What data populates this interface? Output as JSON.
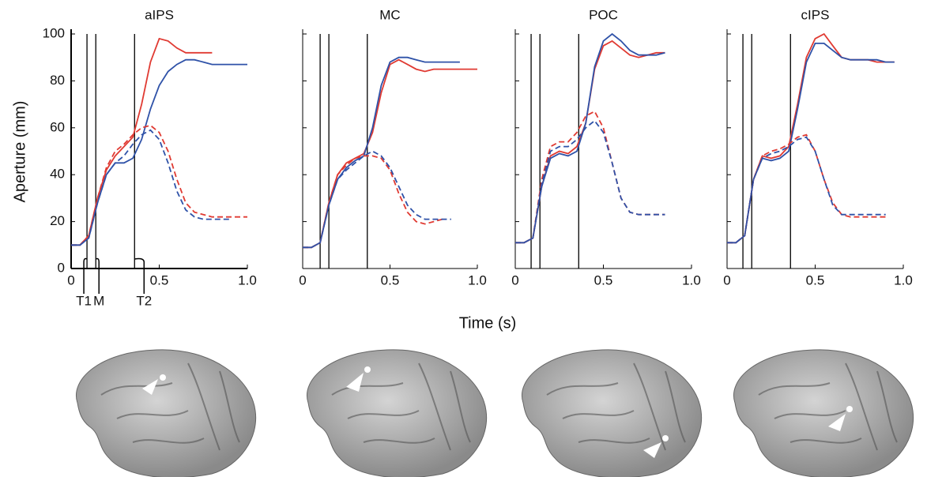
{
  "chart_data": [
    {
      "type": "line",
      "title": "aIPS",
      "ylabel": "Aperture (mm)",
      "xlabel": "Time (s)",
      "x": [
        0,
        0.05,
        0.1,
        0.15,
        0.2,
        0.25,
        0.3,
        0.35,
        0.4,
        0.45,
        0.5,
        0.55,
        0.6,
        0.65,
        0.7,
        0.75,
        0.8,
        0.85,
        0.9,
        0.95,
        1
      ],
      "xlim": [
        0,
        1
      ],
      "xticks": [
        0,
        0.5,
        {
          "value": 1,
          "label": "1.0"
        }
      ],
      "ylim": [
        0,
        100
      ],
      "yticks": [
        0,
        20,
        40,
        60,
        80,
        100
      ],
      "show_ytick_labels": true,
      "events": [
        0.09,
        0.14,
        0.36
      ],
      "event_labels": [
        "T1",
        "M",
        "T2"
      ],
      "series": [
        {
          "color": "#e03a32",
          "dashed": false,
          "values": [
            10,
            10,
            14,
            30,
            42,
            48,
            52,
            56,
            70,
            88,
            98,
            97,
            94,
            92,
            92,
            92,
            92,
            null,
            null,
            null,
            null
          ]
        },
        {
          "color": "#2f52a8",
          "dashed": false,
          "values": [
            10,
            10,
            13,
            28,
            40,
            45,
            45,
            47,
            55,
            68,
            78,
            84,
            87,
            89,
            89,
            88,
            87,
            87,
            87,
            87,
            87
          ]
        },
        {
          "color": "#e03a32",
          "dashed": true,
          "values": [
            10,
            10,
            14,
            30,
            43,
            50,
            53,
            57,
            60,
            61,
            58,
            50,
            38,
            28,
            24,
            23,
            22,
            22,
            22,
            22,
            22
          ]
        },
        {
          "color": "#2f52a8",
          "dashed": true,
          "values": [
            10,
            10,
            13,
            28,
            40,
            45,
            48,
            53,
            57,
            59,
            55,
            45,
            33,
            25,
            22,
            21,
            21,
            21,
            21,
            null,
            null
          ]
        }
      ]
    },
    {
      "type": "line",
      "title": "MC",
      "x": [
        0,
        0.05,
        0.1,
        0.15,
        0.2,
        0.25,
        0.3,
        0.35,
        0.4,
        0.45,
        0.5,
        0.55,
        0.6,
        0.65,
        0.7,
        0.75,
        0.8,
        0.85,
        0.9,
        0.95,
        1
      ],
      "xlim": [
        0,
        1
      ],
      "xticks": [
        0,
        0.5,
        {
          "value": 1,
          "label": "1.0"
        }
      ],
      "ylim": [
        0,
        100
      ],
      "yticks": [
        0,
        20,
        40,
        60,
        80,
        100
      ],
      "show_ytick_labels": false,
      "events": [
        0.1,
        0.15,
        0.37
      ],
      "series": [
        {
          "color": "#e03a32",
          "dashed": false,
          "values": [
            9,
            9,
            11,
            28,
            40,
            45,
            47,
            49,
            58,
            75,
            87,
            89,
            87,
            85,
            84,
            85,
            85,
            85,
            85,
            85,
            85
          ]
        },
        {
          "color": "#2f52a8",
          "dashed": false,
          "values": [
            9,
            9,
            11,
            27,
            38,
            43,
            46,
            48,
            60,
            78,
            88,
            90,
            90,
            89,
            88,
            88,
            88,
            88,
            88,
            null,
            null
          ]
        },
        {
          "color": "#e03a32",
          "dashed": true,
          "values": [
            9,
            9,
            11,
            28,
            40,
            44,
            47,
            48,
            48,
            47,
            42,
            32,
            24,
            20,
            19,
            20,
            21,
            null,
            null,
            null,
            null
          ]
        },
        {
          "color": "#2f52a8",
          "dashed": true,
          "values": [
            9,
            9,
            11,
            27,
            38,
            42,
            45,
            48,
            50,
            48,
            43,
            35,
            27,
            23,
            21,
            21,
            21,
            21,
            null,
            null,
            null
          ]
        }
      ]
    },
    {
      "type": "line",
      "title": "POC",
      "x": [
        0,
        0.05,
        0.1,
        0.15,
        0.2,
        0.25,
        0.3,
        0.35,
        0.4,
        0.45,
        0.5,
        0.55,
        0.6,
        0.65,
        0.7,
        0.75,
        0.8,
        0.85,
        0.9,
        0.95,
        1
      ],
      "xlim": [
        0,
        1
      ],
      "xticks": [
        0,
        0.5,
        {
          "value": 1,
          "label": "1.0"
        }
      ],
      "ylim": [
        0,
        100
      ],
      "yticks": [
        0,
        20,
        40,
        60,
        80,
        100
      ],
      "show_ytick_labels": false,
      "events": [
        0.09,
        0.14,
        0.36
      ],
      "series": [
        {
          "color": "#e03a32",
          "dashed": false,
          "values": [
            11,
            11,
            13,
            35,
            48,
            50,
            49,
            52,
            62,
            85,
            95,
            97,
            94,
            91,
            90,
            91,
            92,
            92,
            null,
            null,
            null
          ]
        },
        {
          "color": "#2f52a8",
          "dashed": false,
          "values": [
            11,
            11,
            13,
            35,
            47,
            49,
            48,
            50,
            62,
            86,
            97,
            100,
            97,
            93,
            91,
            91,
            91,
            92,
            null,
            null,
            null
          ]
        },
        {
          "color": "#e03a32",
          "dashed": true,
          "values": [
            11,
            11,
            13,
            38,
            52,
            54,
            54,
            58,
            65,
            67,
            60,
            45,
            30,
            24,
            23,
            23,
            23,
            23,
            null,
            null,
            null
          ]
        },
        {
          "color": "#2f52a8",
          "dashed": true,
          "values": [
            11,
            11,
            13,
            36,
            50,
            52,
            52,
            55,
            60,
            63,
            58,
            45,
            30,
            24,
            23,
            23,
            23,
            23,
            null,
            null,
            null
          ]
        }
      ]
    },
    {
      "type": "line",
      "title": "cIPS",
      "x": [
        0,
        0.05,
        0.1,
        0.15,
        0.2,
        0.25,
        0.3,
        0.35,
        0.4,
        0.45,
        0.5,
        0.55,
        0.6,
        0.65,
        0.7,
        0.75,
        0.8,
        0.85,
        0.9,
        0.95,
        1
      ],
      "xlim": [
        0,
        1
      ],
      "xticks": [
        0,
        0.5,
        {
          "value": 1,
          "label": "1.0"
        }
      ],
      "ylim": [
        0,
        100
      ],
      "yticks": [
        0,
        20,
        40,
        60,
        80,
        100
      ],
      "show_ytick_labels": false,
      "events": [
        0.09,
        0.14,
        0.36
      ],
      "series": [
        {
          "color": "#e03a32",
          "dashed": false,
          "values": [
            11,
            11,
            14,
            38,
            48,
            47,
            48,
            52,
            70,
            90,
            98,
            100,
            95,
            90,
            89,
            89,
            89,
            88,
            88,
            88,
            null
          ]
        },
        {
          "color": "#2f52a8",
          "dashed": false,
          "values": [
            11,
            11,
            14,
            38,
            47,
            46,
            47,
            50,
            68,
            88,
            96,
            96,
            93,
            90,
            89,
            89,
            89,
            89,
            88,
            88,
            null
          ]
        },
        {
          "color": "#e03a32",
          "dashed": true,
          "values": [
            11,
            11,
            14,
            38,
            48,
            50,
            51,
            53,
            56,
            57,
            50,
            38,
            28,
            23,
            22,
            22,
            22,
            22,
            22,
            null,
            null
          ]
        },
        {
          "color": "#2f52a8",
          "dashed": true,
          "values": [
            11,
            11,
            14,
            38,
            47,
            49,
            50,
            52,
            55,
            56,
            50,
            38,
            27,
            23,
            23,
            23,
            23,
            23,
            23,
            null,
            null
          ]
        }
      ]
    }
  ]
}
